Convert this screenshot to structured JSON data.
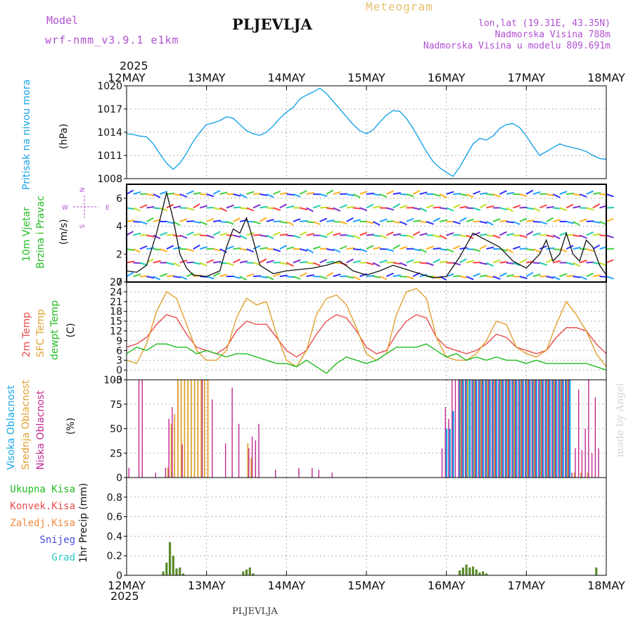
{
  "header": {
    "model_label": "Model",
    "model_name": "wrf-nmm_v3.9.1 e1km",
    "station": "PLJEVLJA",
    "product": "Meteogram",
    "lonlat": "lon,lat (19.31E, 43.35N)",
    "elevation": "Nadmorska Visina 788m",
    "model_elevation": "Nadmorska Visina u modelu 809.691m"
  },
  "footer": {
    "station": "PLJEVLJA",
    "credit": "made by Angel"
  },
  "colors": {
    "pressure": "#1aa3e8",
    "temp2m": "#e84c4c",
    "sfc": "#e0a030",
    "dew": "#22bb22",
    "high": "#18a8e8",
    "mid": "#e0a030",
    "low": "#c02890",
    "precip": "#5a8a2a"
  },
  "chart_data": [
    {
      "type": "line",
      "title": "",
      "ylabel": "Pritisak na nivou mora (hPa)",
      "ylim": [
        1008,
        1020
      ],
      "yticks": [
        1008,
        1011,
        1014,
        1017,
        1020
      ],
      "x_start": "12MAY 2025",
      "x_ticks": [
        "12MAY",
        "13MAY",
        "14MAY",
        "15MAY",
        "16MAY",
        "17MAY",
        "18MAY"
      ],
      "series": [
        {
          "name": "",
          "x_hours": [
            0,
            2,
            4,
            6,
            8,
            10,
            12,
            14,
            16,
            18,
            20,
            22,
            24,
            26,
            28,
            30,
            32,
            34,
            36,
            38,
            40,
            42,
            44,
            46,
            48,
            50,
            52,
            54,
            56,
            58,
            60,
            62,
            64,
            66,
            68,
            70,
            72,
            74,
            76,
            78,
            80,
            82,
            84,
            86,
            88,
            90,
            92,
            94,
            96,
            98,
            100,
            102,
            104,
            106,
            108,
            110,
            112,
            114,
            116,
            118,
            120,
            122,
            124,
            126,
            128,
            130,
            132,
            134,
            136,
            138,
            140,
            142,
            144
          ],
          "values": [
            1013.8,
            1013.7,
            1013.5,
            1013.4,
            1012.5,
            1011.2,
            1010.0,
            1009.2,
            1010.0,
            1011.3,
            1012.8,
            1014.0,
            1015.0,
            1015.2,
            1015.5,
            1016.0,
            1015.8,
            1015.0,
            1014.2,
            1013.8,
            1013.6,
            1014.0,
            1014.8,
            1015.8,
            1016.6,
            1017.2,
            1018.3,
            1018.8,
            1019.2,
            1019.7,
            1019.0,
            1018.0,
            1017.0,
            1016.0,
            1015.0,
            1014.2,
            1013.8,
            1014.3,
            1015.3,
            1016.2,
            1016.8,
            1016.7,
            1015.8,
            1014.5,
            1013.0,
            1011.5,
            1010.2,
            1009.4,
            1008.8,
            1008.3,
            1009.5,
            1011.0,
            1012.5,
            1013.2,
            1013.0,
            1013.5,
            1014.5,
            1015.0,
            1015.1,
            1014.6,
            1013.5,
            1012.2,
            1011.0,
            1011.5,
            1012.0,
            1012.5,
            1012.2,
            1012.0,
            1011.8,
            1011.5,
            1011.0,
            1010.6,
            1010.5
          ]
        }
      ]
    },
    {
      "type": "line",
      "ylabel": "10m Vjetar Brzina i Pravac (m/s)",
      "ylim": [
        0,
        7
      ],
      "yticks": [
        0,
        2,
        4,
        6
      ],
      "compass": {
        "n": "N",
        "s": "S",
        "w": "W",
        "e": "E"
      },
      "series": [
        {
          "name": "",
          "x_hours": [
            0,
            3,
            6,
            9,
            12,
            14,
            16,
            18,
            20,
            24,
            28,
            30,
            32,
            34,
            36,
            38,
            40,
            44,
            48,
            52,
            56,
            60,
            64,
            68,
            72,
            76,
            80,
            84,
            88,
            92,
            96,
            100,
            104,
            108,
            112,
            116,
            120,
            124,
            126,
            128,
            130,
            132,
            134,
            136,
            138,
            140,
            142,
            144
          ],
          "values": [
            0.8,
            0.7,
            1.2,
            3.5,
            6.4,
            4.5,
            2.0,
            1.0,
            0.5,
            0.4,
            0.8,
            2.5,
            3.8,
            3.5,
            4.6,
            3.0,
            1.2,
            0.6,
            0.8,
            0.9,
            1.0,
            1.2,
            1.5,
            0.8,
            0.5,
            0.8,
            1.2,
            0.9,
            0.6,
            0.3,
            0.4,
            1.8,
            3.5,
            3.0,
            2.5,
            1.5,
            1.0,
            2.0,
            3.0,
            1.5,
            2.0,
            3.5,
            2.0,
            1.5,
            3.0,
            2.5,
            1.2,
            0.5
          ]
        }
      ]
    },
    {
      "type": "line",
      "ylabel": "(C)",
      "ylim": [
        -3,
        27
      ],
      "yticks": [
        -3,
        0,
        3,
        6,
        9,
        12,
        15,
        18,
        21,
        24,
        27
      ],
      "series": [
        {
          "name": "2m Temp",
          "x_hours": [
            0,
            3,
            6,
            9,
            12,
            15,
            18,
            21,
            24,
            27,
            30,
            33,
            36,
            39,
            42,
            45,
            48,
            51,
            54,
            57,
            60,
            63,
            66,
            69,
            72,
            75,
            78,
            81,
            84,
            87,
            90,
            93,
            96,
            99,
            102,
            105,
            108,
            111,
            114,
            117,
            120,
            123,
            126,
            129,
            132,
            135,
            138,
            141,
            144
          ],
          "values": [
            7,
            8,
            10,
            14,
            17,
            16,
            11,
            7,
            6,
            5,
            7,
            12,
            15,
            14,
            14,
            10,
            6,
            4,
            6,
            11,
            15,
            17,
            16,
            12,
            7,
            5,
            6,
            11,
            15,
            17,
            16,
            10,
            7,
            6,
            5,
            6,
            8,
            11,
            10,
            7,
            6,
            5,
            6,
            10,
            13,
            13,
            12,
            8,
            5
          ]
        },
        {
          "name": "SFC Temp",
          "x_hours": [
            0,
            3,
            6,
            9,
            12,
            15,
            18,
            21,
            24,
            27,
            30,
            33,
            36,
            39,
            42,
            45,
            48,
            51,
            54,
            57,
            60,
            63,
            66,
            69,
            72,
            75,
            78,
            81,
            84,
            87,
            90,
            93,
            96,
            99,
            102,
            105,
            108,
            111,
            114,
            117,
            120,
            123,
            126,
            129,
            132,
            135,
            138,
            141,
            144
          ],
          "values": [
            3,
            2,
            8,
            18,
            24,
            22,
            14,
            6,
            3,
            3,
            6,
            16,
            22,
            20,
            21,
            11,
            3,
            1,
            6,
            17,
            22,
            23,
            20,
            13,
            5,
            3,
            5,
            17,
            24,
            25,
            22,
            10,
            4,
            3,
            3,
            5,
            9,
            15,
            14,
            7,
            5,
            4,
            6,
            14,
            21,
            17,
            12,
            5,
            1
          ]
        },
        {
          "name": "dewpt Temp",
          "x_hours": [
            0,
            3,
            6,
            9,
            12,
            15,
            18,
            21,
            24,
            27,
            30,
            33,
            36,
            39,
            42,
            45,
            48,
            51,
            54,
            57,
            60,
            63,
            66,
            69,
            72,
            75,
            78,
            81,
            84,
            87,
            90,
            93,
            96,
            99,
            102,
            105,
            108,
            111,
            114,
            117,
            120,
            123,
            126,
            129,
            132,
            135,
            138,
            141,
            144
          ],
          "values": [
            5,
            7,
            6,
            8,
            8,
            7,
            7,
            5,
            6,
            5,
            4,
            5,
            5,
            4,
            3,
            2,
            2,
            1,
            3,
            1,
            -1,
            2,
            4,
            3,
            2,
            3,
            5,
            7,
            7,
            7,
            8,
            6,
            4,
            5,
            3,
            4,
            3,
            4,
            3,
            3,
            2,
            3,
            2,
            2,
            2,
            2,
            2,
            1,
            0
          ]
        }
      ]
    },
    {
      "type": "bar",
      "ylabel": "(%)",
      "ylim": [
        0,
        100
      ],
      "yticks": [
        0,
        25,
        50,
        75,
        100
      ],
      "series": [
        {
          "name": "Visoka Oblacnost",
          "x_hours": [
            96,
            97,
            98,
            100,
            101,
            102,
            103,
            104,
            105,
            106,
            107,
            108,
            109,
            110,
            111,
            112,
            113,
            114,
            115,
            116,
            117,
            118,
            119,
            120,
            121,
            122,
            123,
            124,
            125,
            126,
            127,
            128,
            129,
            130,
            131,
            132,
            133
          ],
          "values": [
            50,
            50,
            68,
            100,
            100,
            100,
            100,
            100,
            100,
            100,
            100,
            100,
            100,
            100,
            100,
            100,
            100,
            100,
            100,
            100,
            100,
            100,
            100,
            100,
            100,
            100,
            100,
            100,
            100,
            100,
            100,
            100,
            100,
            100,
            100,
            100,
            100
          ]
        },
        {
          "name": "Srednja Oblacnost",
          "x_hours": [
            12,
            13,
            14,
            15,
            16,
            17,
            18,
            19,
            20,
            21,
            22,
            23,
            24,
            36,
            37,
            100,
            102,
            104,
            106,
            108,
            110,
            112,
            114,
            116,
            118,
            120,
            122,
            124,
            126,
            128,
            130,
            132,
            134,
            136,
            138
          ],
          "values": [
            10,
            55,
            65,
            100,
            100,
            100,
            100,
            100,
            100,
            100,
            100,
            100,
            100,
            35,
            20,
            100,
            100,
            100,
            100,
            100,
            100,
            100,
            100,
            100,
            100,
            100,
            100,
            100,
            100,
            100,
            100,
            100,
            5,
            5,
            5
          ]
        },
        {
          "name": "Niska Oblacnost",
          "x_hours": [
            1,
            4,
            5,
            9,
            12,
            13,
            14,
            17,
            23,
            26,
            30,
            32,
            34,
            37,
            38,
            39,
            40,
            45,
            52,
            56,
            58,
            62,
            95,
            96,
            97,
            98,
            99,
            100,
            101,
            102,
            104,
            105,
            106,
            107,
            108,
            109,
            110,
            111,
            112,
            113,
            114,
            115,
            116,
            117,
            118,
            119,
            120,
            121,
            122,
            123,
            124,
            125,
            126,
            127,
            128,
            129,
            130,
            131,
            132,
            133,
            134,
            135,
            136,
            137,
            138,
            139,
            140,
            141,
            142
          ],
          "values": [
            10,
            100,
            100,
            5,
            10,
            60,
            72,
            34,
            100,
            80,
            35,
            92,
            55,
            30,
            42,
            38,
            55,
            8,
            10,
            10,
            8,
            5,
            30,
            72,
            60,
            100,
            100,
            100,
            100,
            100,
            100,
            100,
            100,
            100,
            100,
            100,
            100,
            100,
            100,
            100,
            100,
            100,
            100,
            100,
            100,
            100,
            100,
            100,
            100,
            100,
            100,
            100,
            100,
            100,
            100,
            100,
            100,
            100,
            100,
            100,
            5,
            30,
            90,
            28,
            50,
            100,
            25,
            82,
            30
          ]
        }
      ]
    },
    {
      "type": "bar",
      "ylabel": "1hr Precip (mm)",
      "ylim": [
        0,
        1
      ],
      "yticks": [
        0,
        0.2,
        0.4,
        0.6,
        0.8
      ],
      "series": [
        {
          "name": "Ukupna Kisa",
          "x_hours": [
            11,
            12,
            13,
            14,
            15,
            16,
            17,
            35,
            36,
            37,
            38,
            100,
            101,
            102,
            103,
            104,
            105,
            106,
            107,
            108,
            141
          ],
          "values": [
            0.04,
            0.13,
            0.34,
            0.2,
            0.07,
            0.08,
            0.02,
            0.04,
            0.06,
            0.08,
            0.02,
            0.05,
            0.08,
            0.11,
            0.08,
            0.09,
            0.06,
            0.03,
            0.04,
            0.02,
            0.08
          ]
        },
        {
          "name": "Konvek.Kisa",
          "x_hours": [],
          "values": []
        },
        {
          "name": "Zaledj.Kisa",
          "x_hours": [],
          "values": []
        },
        {
          "name": "Snijeg",
          "x_hours": [],
          "values": []
        },
        {
          "name": "Grad",
          "x_hours": [],
          "values": []
        }
      ]
    }
  ],
  "legend": {
    "pressure_title": "Pritisak na nivou mora",
    "pressure_unit": "(hPa)",
    "wind_title1": "10m Vjetar",
    "wind_title2": "Brzina i Pravac",
    "wind_unit": "(m/s)",
    "t2m": "2m Temp",
    "tsfc": "SFC Temp",
    "tdew": "dewpt Temp",
    "tunit": "(C)",
    "cloud_high": "Visoka Oblacnost",
    "cloud_mid": "Srednja Oblacnost",
    "cloud_low": "Niska Oblacnost",
    "cloud_unit": "(%)",
    "p_total": "Ukupna Kisa",
    "p_conv": "Konvek.Kisa",
    "p_frz": "Zaledj.Kisa",
    "p_snow": "Snijeg",
    "p_hail": "Grad",
    "p_unit": "1hr Precip (mm)",
    "year": "2025"
  }
}
